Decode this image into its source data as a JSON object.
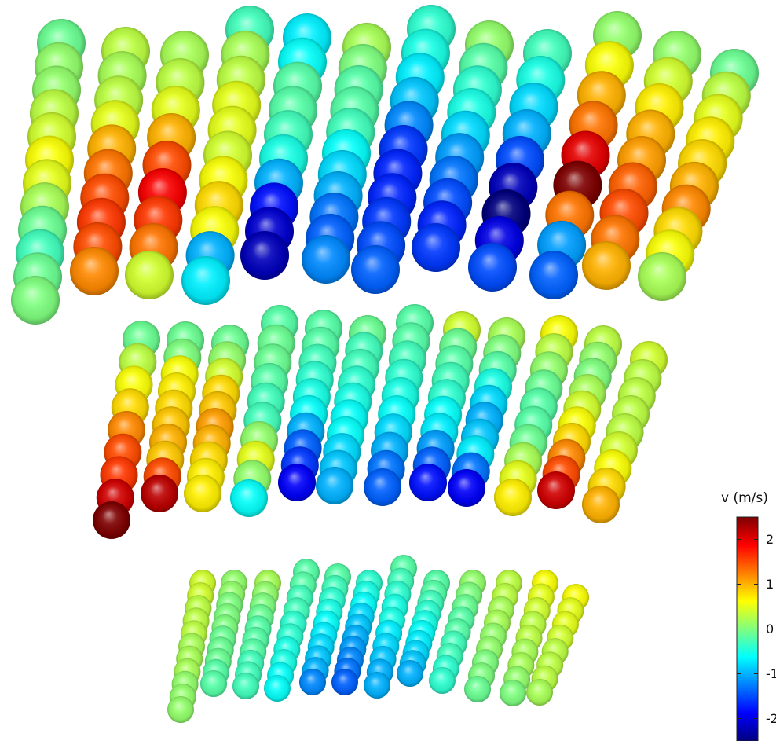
{
  "colorbar": {
    "title": "v (m/s)",
    "colormap": "jet",
    "range": [
      -2.5,
      2.5
    ],
    "tick_labels": [
      "2",
      "1",
      "0",
      "-1",
      "-2"
    ],
    "tick_values": [
      2,
      1,
      0,
      -1,
      -2
    ]
  },
  "colormap_stops": [
    "#00007f",
    "#0000ff",
    "#007fff",
    "#00ffff",
    "#7fff7f",
    "#ffff00",
    "#ff7f00",
    "#ff0000",
    "#7f0000"
  ],
  "groups": [
    {
      "name": "upper",
      "columns": [
        [
          -0.1,
          0.1,
          0.1,
          0.3,
          0.4,
          0.6,
          0.5,
          0.2,
          -0.1,
          -0.3,
          -0.1,
          0.0
        ],
        [
          0.3,
          0.2,
          0.3,
          0.5,
          1.0,
          1.3,
          1.5,
          1.6,
          1.5,
          1.2
        ],
        [
          0.2,
          0.3,
          0.5,
          1.0,
          1.5,
          1.9,
          1.6,
          1.3,
          0.4
        ],
        [
          -0.3,
          0.2,
          0.3,
          0.5,
          0.5,
          0.4,
          0.6,
          0.8,
          0.6,
          -1.0,
          -0.7
        ],
        [
          -0.7,
          -0.6,
          -0.2,
          -0.2,
          -0.3,
          -0.5,
          -1.0,
          -1.8,
          -2.1,
          -2.2
        ],
        [
          0.2,
          0.0,
          -0.2,
          -0.2,
          -0.3,
          -0.6,
          -0.8,
          -1.0,
          -1.3,
          -1.4,
          -1.2
        ],
        [
          -0.4,
          -0.5,
          -0.7,
          -0.9,
          -1.2,
          -1.6,
          -1.7,
          -1.7,
          -1.6,
          -1.5,
          -1.4
        ],
        [
          0.1,
          -0.2,
          -0.4,
          -0.5,
          -0.8,
          -1.1,
          -1.3,
          -1.5,
          -1.7,
          -1.6
        ],
        [
          -0.3,
          -0.5,
          -0.8,
          -1.0,
          -1.5,
          -2.2,
          -2.6,
          -2.0,
          -1.5
        ],
        [
          0.1,
          0.6,
          1.0,
          1.3,
          2.0,
          2.5,
          1.3,
          -1.1,
          -1.4
        ],
        [
          0.1,
          0.4,
          0.7,
          1.0,
          1.1,
          1.4,
          1.5,
          1.3,
          1.0
        ],
        [
          -0.1,
          0.3,
          0.5,
          0.7,
          0.8,
          1.0,
          1.2,
          0.8,
          0.6,
          0.2
        ]
      ]
    },
    {
      "name": "middle",
      "columns": [
        [
          -0.1,
          0.3,
          0.6,
          0.8,
          1.2,
          1.5,
          1.6,
          2.1,
          2.6
        ],
        [
          -0.1,
          0.0,
          0.6,
          0.7,
          0.8,
          0.9,
          1.0,
          0.9,
          1.5,
          2.2
        ],
        [
          -0.1,
          0.1,
          0.4,
          0.8,
          0.9,
          1.1,
          1.0,
          0.8,
          0.7,
          0.7
        ],
        [
          -0.2,
          -0.1,
          -0.1,
          -0.2,
          -0.3,
          -0.3,
          0.1,
          0.5,
          0.1,
          -0.6
        ],
        [
          -0.2,
          -0.2,
          -0.3,
          -0.4,
          -0.5,
          -0.6,
          -1.0,
          -1.4,
          -1.6,
          -1.9
        ],
        [
          -0.1,
          -0.3,
          -0.3,
          -0.4,
          -0.5,
          -0.6,
          -0.6,
          -0.8,
          -0.9,
          -1.0
        ],
        [
          -0.2,
          -0.2,
          -0.3,
          -0.4,
          -0.5,
          -0.6,
          -0.8,
          -1.0,
          -1.3,
          -1.4
        ],
        [
          0.4,
          -0.1,
          -0.2,
          -0.3,
          -0.4,
          -0.6,
          -0.7,
          -1.1,
          -1.4,
          -1.8
        ],
        [
          0.2,
          0.0,
          -0.2,
          -0.5,
          -0.8,
          -1.0,
          -0.9,
          -0.7,
          -1.3,
          -1.9
        ],
        [
          0.6,
          0.3,
          0.1,
          -0.1,
          -0.2,
          -0.2,
          -0.1,
          0.2,
          0.5,
          0.7
        ],
        [
          0.3,
          0.1,
          0.0,
          0.2,
          0.4,
          0.6,
          0.8,
          1.2,
          1.5,
          2.1
        ],
        [
          0.4,
          0.3,
          0.3,
          0.3,
          0.3,
          0.4,
          0.6,
          0.8,
          1.0
        ]
      ]
    },
    {
      "name": "lower",
      "columns": [
        [
          0.4,
          0.4,
          0.3,
          0.3,
          0.3,
          0.2,
          0.2,
          0.2,
          0.1,
          0.1,
          0.1
        ],
        [
          0.1,
          0.1,
          0.0,
          0.0,
          0.0,
          -0.1,
          -0.1,
          -0.1,
          -0.2,
          -0.2
        ],
        [
          0.2,
          0.1,
          0.0,
          -0.1,
          -0.2,
          -0.2,
          -0.2,
          -0.3,
          -0.3,
          -0.3
        ],
        [
          -0.2,
          -0.2,
          -0.3,
          -0.3,
          -0.4,
          -0.4,
          -0.5,
          -0.5,
          -0.6,
          -0.6
        ],
        [
          -0.2,
          -0.3,
          -0.4,
          -0.5,
          -0.6,
          -0.7,
          -0.8,
          -0.9,
          -1.0,
          -1.2
        ],
        [
          -0.4,
          -0.5,
          -0.6,
          -0.8,
          -0.9,
          -1.0,
          -1.1,
          -1.2,
          -1.3,
          -1.4
        ],
        [
          -0.2,
          -0.3,
          -0.4,
          -0.5,
          -0.5,
          -0.7,
          -0.8,
          -0.9,
          -1.0,
          -1.0
        ],
        [
          -0.2,
          -0.2,
          -0.3,
          -0.4,
          -0.5,
          -0.6,
          -0.7,
          -0.8,
          -0.9,
          -1.0
        ],
        [
          0.1,
          0.0,
          -0.1,
          -0.2,
          -0.2,
          -0.3,
          -0.3,
          -0.4,
          -0.4
        ],
        [
          0.3,
          0.3,
          0.2,
          0.2,
          0.1,
          0.1,
          0.0,
          0.0,
          -0.1
        ],
        [
          0.6,
          0.5,
          0.4,
          0.3,
          0.3,
          0.2,
          0.2,
          0.1,
          0.0
        ],
        [
          0.6,
          0.5,
          0.5,
          0.4,
          0.3,
          0.3,
          0.3,
          0.2
        ]
      ]
    }
  ]
}
